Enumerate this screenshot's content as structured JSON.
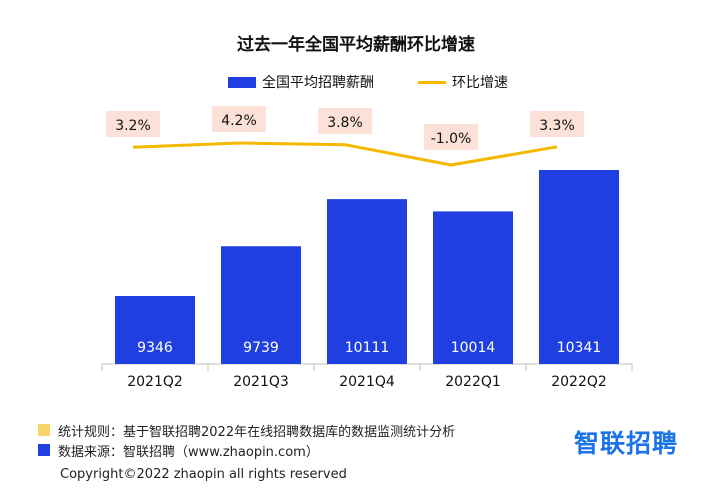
{
  "chart_data": {
    "type": "bar",
    "title": "过去一年全国平均薪酬环比增速",
    "categories": [
      "2021Q2",
      "2021Q3",
      "2021Q4",
      "2022Q1",
      "2022Q2"
    ],
    "series": [
      {
        "name": "全国平均招聘薪酬",
        "type": "bar",
        "values": [
          9346,
          9739,
          10111,
          10014,
          10341
        ],
        "color": "#1f3fe0"
      },
      {
        "name": "环比增速",
        "type": "line",
        "values": [
          3.2,
          4.2,
          3.8,
          -1.0,
          3.3
        ],
        "labels": [
          "3.2%",
          "4.2%",
          "3.8%",
          "-1.0%",
          "3.3%"
        ],
        "color": "#f5b800"
      }
    ],
    "legend_position": "top",
    "grid": false
  },
  "notes": [
    {
      "text": "统计规则：基于智联招聘2022年在线招聘数据库的数据监测统计分析",
      "color": "#f8d36a"
    },
    {
      "text": "数据来源：智联招聘（www.zhaopin.com）",
      "color": "#1f3fe0"
    }
  ],
  "brand": {
    "text": "智联招聘",
    "color": "#1a73e8"
  },
  "copyright": "Copyright©2022 zhaopin all rights reserved"
}
